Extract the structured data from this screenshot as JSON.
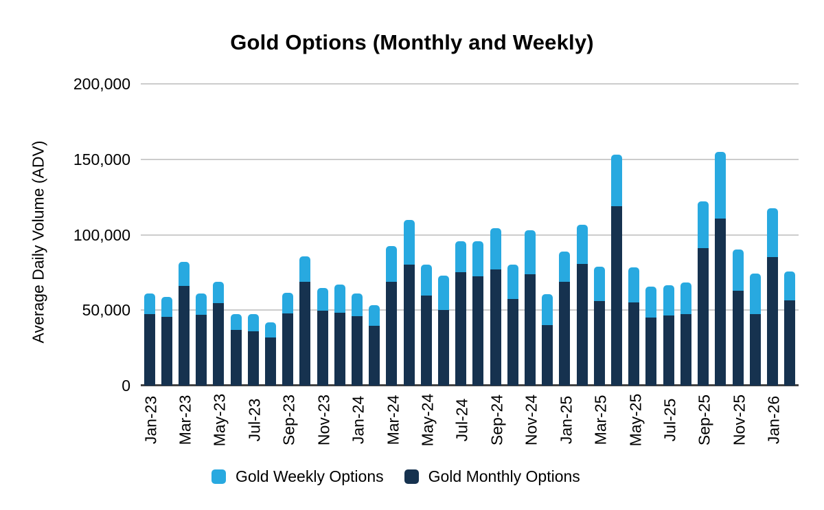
{
  "title": "Gold Options (Monthly and Weekly)",
  "y_axis": {
    "title": "Average Daily Volume (ADV)",
    "tick_labels": [
      "0",
      "50,000",
      "100,000",
      "150,000",
      "200,000"
    ]
  },
  "legend": [
    {
      "label": "Gold Weekly Options",
      "color": "#28A9E0"
    },
    {
      "label": "Gold Monthly Options",
      "color": "#16324F"
    }
  ],
  "colors": {
    "weekly_blue": "#28A9E0",
    "monthly_navy": "#16324F",
    "gridline": "#cccccc",
    "axis_line": "#424242"
  },
  "chart_data": {
    "type": "bar",
    "stacked": true,
    "title": "Gold Options (Monthly and Weekly)",
    "xlabel": "",
    "ylabel": "Average Daily Volume (ADV)",
    "ylim": [
      0,
      200000
    ],
    "y_ticks": [
      0,
      50000,
      100000,
      150000,
      200000
    ],
    "grid": true,
    "legend_position": "bottom",
    "x_tick_shown_every": 2,
    "x_tick_labels_shown": [
      "Jan-23",
      "Mar-23",
      "May-23",
      "Jul-23",
      "Sep-23",
      "Nov-23",
      "Jan-24",
      "Mar-24",
      "May-24",
      "Jul-24",
      "Sep-24",
      "Nov-24",
      "Jan-25",
      "Mar-25",
      "May-25",
      "Jul-25",
      "Sep-25",
      "Nov-25",
      "Jan-26"
    ],
    "categories": [
      "Jan-23",
      "Feb-23",
      "Mar-23",
      "Apr-23",
      "May-23",
      "Jun-23",
      "Jul-23",
      "Aug-23",
      "Sep-23",
      "Oct-23",
      "Nov-23",
      "Dec-23",
      "Jan-24",
      "Feb-24",
      "Mar-24",
      "Apr-24",
      "May-24",
      "Jun-24",
      "Jul-24",
      "Aug-24",
      "Sep-24",
      "Oct-24",
      "Nov-24",
      "Dec-24",
      "Jan-25",
      "Feb-25",
      "Mar-25",
      "Apr-25",
      "May-25",
      "Jun-25",
      "Jul-25",
      "Aug-25",
      "Sep-25",
      "Oct-25",
      "Nov-25",
      "Dec-25",
      "Jan-26",
      "Feb-26"
    ],
    "series": [
      {
        "name": "Gold Monthly Options",
        "color": "#16324F",
        "values": [
          47500,
          45500,
          66000,
          47000,
          54500,
          37000,
          36000,
          32000,
          48000,
          69000,
          49500,
          48500,
          46000,
          39500,
          69000,
          80000,
          59500,
          50000,
          75000,
          72500,
          77000,
          57500,
          74000,
          40000,
          69000,
          80500,
          56000,
          119000,
          55000,
          45000,
          46500,
          47500,
          91000,
          110500,
          63000,
          47500,
          85000,
          56500
        ]
      },
      {
        "name": "Gold Weekly Options",
        "color": "#28A9E0",
        "values": [
          13500,
          13500,
          16000,
          14000,
          14500,
          10500,
          11500,
          10000,
          13500,
          16500,
          15000,
          18500,
          15000,
          14000,
          23500,
          30000,
          20500,
          23000,
          20500,
          23000,
          27500,
          22500,
          29000,
          20500,
          20000,
          26000,
          23000,
          34000,
          23500,
          20500,
          20000,
          21000,
          31000,
          44500,
          27000,
          27000,
          32500,
          19000
        ]
      }
    ]
  }
}
